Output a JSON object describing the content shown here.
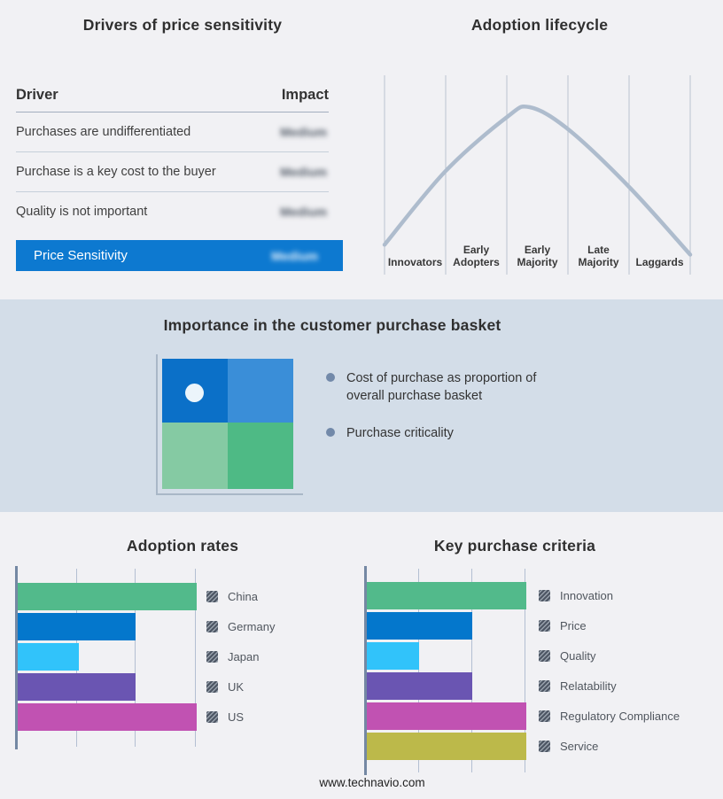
{
  "drivers_panel": {
    "title": "Drivers of price sensitivity",
    "columns": {
      "driver": "Driver",
      "impact": "Impact"
    },
    "rows": [
      {
        "driver": "Purchases are undifferentiated",
        "impact": "Medium",
        "impact_blurred": true
      },
      {
        "driver": "Purchase is a key cost to the buyer",
        "impact": "Medium",
        "impact_blurred": true
      },
      {
        "driver": "Quality is not important",
        "impact": "Medium",
        "impact_blurred": true
      }
    ],
    "highlight_row": {
      "driver": "Price Sensitivity",
      "impact": "Medium",
      "impact_blurred": true,
      "bg_color": "#0d79d0"
    }
  },
  "basket_panel": {
    "title": "Importance in the customer purchase basket",
    "band_bg": "#d3dde8",
    "bullets": [
      "Cost of purchase as proportion of\noverall purchase basket",
      "Purchase criticality"
    ],
    "quadrant_colors": {
      "top_left": "#0b70c8",
      "top_right": "#3a8ed8",
      "bottom_left": "#85caa3",
      "bottom_right": "#4eba85"
    },
    "dot_color": "#ecf5fb",
    "dot_position": "upper-left quadrant"
  },
  "chart_data": [
    {
      "id": "adoption_rates",
      "type": "bar",
      "orientation": "horizontal",
      "title": "Adoption rates",
      "categories": [
        "China",
        "Germany",
        "Japan",
        "UK",
        "US"
      ],
      "values": [
        100,
        66,
        34,
        66,
        100
      ],
      "value_scale": "percent of axis max (axis unlabeled)",
      "colors": [
        "#52ba8b",
        "#0477cc",
        "#31c3fa",
        "#6a55b2",
        "#c152b2"
      ],
      "xlim": [
        0,
        100
      ],
      "gridlines_pct": [
        33.7,
        66.3,
        100
      ],
      "grid": true,
      "legend_position": "right"
    },
    {
      "id": "key_purchase_criteria",
      "type": "bar",
      "orientation": "horizontal",
      "title": "Key purchase criteria",
      "categories": [
        "Innovation",
        "Price",
        "Quality",
        "Relatability",
        "Regulatory Compliance",
        "Service"
      ],
      "values": [
        100,
        66,
        33,
        66,
        100,
        100
      ],
      "value_scale": "percent of axis max (axis unlabeled)",
      "colors": [
        "#52ba8b",
        "#0477cc",
        "#31c3fa",
        "#6a55b2",
        "#c152b2",
        "#bcb94a"
      ],
      "xlim": [
        0,
        100
      ],
      "gridlines_pct": [
        33.3,
        66.7,
        100
      ],
      "grid": true,
      "legend_position": "right"
    },
    {
      "id": "adoption_lifecycle",
      "type": "line",
      "title": "Adoption lifecycle",
      "stage_labels": [
        "Innovators",
        "Early\nAdopters",
        "Early\nMajority",
        "Late\nMajority",
        "Laggards"
      ],
      "curve_points": [
        [
          0,
          0.85
        ],
        [
          0.2,
          0.48
        ],
        [
          0.4,
          0.21
        ],
        [
          0.475,
          0.16
        ],
        [
          0.6,
          0.27
        ],
        [
          0.8,
          0.56
        ],
        [
          1,
          0.9
        ]
      ],
      "curve_color": "#aebccd",
      "grid_color": "#bac3cf",
      "description": "bell curve peaking in the Early Majority stage"
    }
  ],
  "footer": {
    "url": "www.technavio.com"
  }
}
